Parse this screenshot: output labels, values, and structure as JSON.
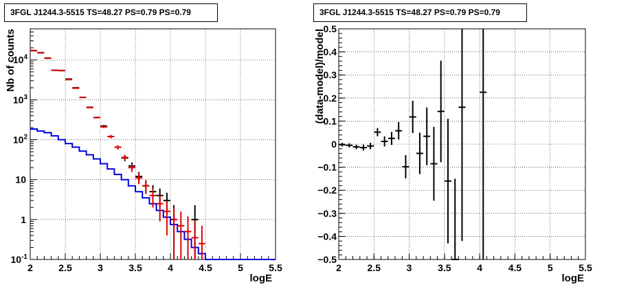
{
  "chart_data": [
    {
      "type": "line",
      "title": "3FGL J1244.3-5515 TS=48.27 PS=0.79 PS=0.79",
      "xlabel": "logE",
      "ylabel": "Nb of counts",
      "xlim": [
        2,
        5.5
      ],
      "ylim": [
        0.1,
        60000
      ],
      "yscale": "log",
      "grid": true,
      "xticks": [
        "2",
        "2.5",
        "3",
        "3.5",
        "4",
        "4.5",
        "5",
        "5.5"
      ],
      "yticks": [
        "10^-1",
        "1",
        "10",
        "10^2",
        "10^3",
        "10^4"
      ],
      "series": [
        {
          "role": "data",
          "color": "#000000",
          "x": [
            2.05,
            2.15,
            2.25,
            2.35,
            2.45,
            2.55,
            2.65,
            2.75,
            2.85,
            2.95,
            3.05,
            3.15,
            3.25,
            3.35,
            3.45,
            3.55,
            3.65,
            3.75,
            3.85,
            3.95,
            4.05,
            4.35
          ],
          "y": [
            17000,
            15000,
            11000,
            5500,
            5400,
            3300,
            2000,
            1150,
            650,
            360,
            220,
            120,
            65,
            35,
            22,
            12,
            7,
            5,
            4,
            3,
            1,
            1
          ],
          "yerr_lo": [
            130,
            120,
            100,
            70,
            70,
            55,
            45,
            34,
            25,
            19,
            15,
            11,
            8,
            6,
            5,
            3.5,
            2.6,
            2.2,
            2,
            1.7,
            0.9,
            0.9
          ],
          "yerr_hi": [
            130,
            120,
            100,
            70,
            70,
            55,
            45,
            34,
            25,
            19,
            15,
            11,
            8,
            6,
            5,
            3.5,
            2.6,
            2.2,
            2,
            1.7,
            1.3,
            1.3
          ]
        },
        {
          "role": "model",
          "color": "#e00000",
          "x": [
            2.05,
            2.15,
            2.25,
            2.35,
            2.45,
            2.55,
            2.65,
            2.75,
            2.85,
            2.95,
            3.05,
            3.15,
            3.25,
            3.35,
            3.45,
            3.55,
            3.65,
            3.75,
            3.85,
            3.95,
            4.05,
            4.15,
            4.25,
            4.35,
            4.45
          ],
          "y": [
            17200,
            15200,
            11100,
            5500,
            5400,
            3200,
            1950,
            1150,
            640,
            360,
            210,
            120,
            65,
            36,
            20,
            11,
            7,
            4,
            2.5,
            1.6,
            1.0,
            0.7,
            0.5,
            0.35,
            0.25
          ],
          "yerr_lo": [
            130,
            120,
            100,
            70,
            70,
            55,
            45,
            34,
            25,
            19,
            15,
            11,
            8,
            6,
            4.5,
            3.3,
            2.6,
            2,
            1.6,
            1.2,
            0.9,
            0.6,
            0.4,
            0.27,
            0.2
          ],
          "yerr_hi": [
            130,
            120,
            100,
            70,
            70,
            55,
            45,
            34,
            25,
            19,
            15,
            11,
            8,
            6,
            4.5,
            3.3,
            2.6,
            2,
            1.6,
            1.3,
            1.0,
            0.9,
            0.7,
            0.6,
            0.45
          ]
        },
        {
          "role": "background",
          "color": "#0000dd",
          "step": true,
          "edges": [
            2.0,
            2.1,
            2.2,
            2.3,
            2.4,
            2.5,
            2.6,
            2.7,
            2.8,
            2.9,
            3.0,
            3.1,
            3.2,
            3.3,
            3.4,
            3.5,
            3.6,
            3.7,
            3.8,
            3.9,
            4.0,
            4.1,
            4.2,
            4.3,
            4.4,
            4.5,
            5.5
          ],
          "values": [
            185,
            165,
            150,
            125,
            100,
            80,
            65,
            52,
            42,
            33,
            25,
            18.5,
            13.5,
            10,
            7,
            5,
            3.5,
            2.5,
            1.7,
            1.15,
            0.75,
            0.5,
            0.32,
            0.2,
            0.14,
            0.1
          ]
        }
      ]
    },
    {
      "type": "scatter",
      "title": "3FGL J1244.3-5515 TS=48.27 PS=0.79 PS=0.79",
      "xlabel": "logE",
      "ylabel": "(data-model)/model",
      "xlim": [
        2,
        5.5
      ],
      "ylim": [
        -0.5,
        0.5
      ],
      "grid": true,
      "xticks": [
        "2",
        "2.5",
        "3",
        "3.5",
        "4",
        "4.5",
        "5",
        "5.5"
      ],
      "yticks": [
        "-0.5",
        "-0.4",
        "-0.3",
        "-0.2",
        "-0.1",
        "0",
        "0.1",
        "0.2",
        "0.3",
        "0.4",
        "0.5"
      ],
      "series": [
        {
          "role": "residuals",
          "color": "#000000",
          "x": [
            2.05,
            2.15,
            2.25,
            2.35,
            2.45,
            2.55,
            2.65,
            2.75,
            2.85,
            2.95,
            3.05,
            3.15,
            3.25,
            3.35,
            3.45,
            3.55,
            3.65,
            3.75,
            4.05
          ],
          "y": [
            -0.002,
            -0.005,
            -0.012,
            -0.015,
            -0.008,
            0.052,
            0.012,
            0.025,
            0.058,
            -0.098,
            0.118,
            -0.04,
            0.034,
            -0.085,
            0.142,
            -0.16,
            -0.5,
            0.16,
            0.225
          ],
          "yerr": [
            0.008,
            0.009,
            0.01,
            0.013,
            0.014,
            0.018,
            0.022,
            0.028,
            0.038,
            0.05,
            0.07,
            0.09,
            0.125,
            0.16,
            0.22,
            0.27,
            0.35,
            0.58,
            0.9
          ]
        }
      ]
    }
  ]
}
